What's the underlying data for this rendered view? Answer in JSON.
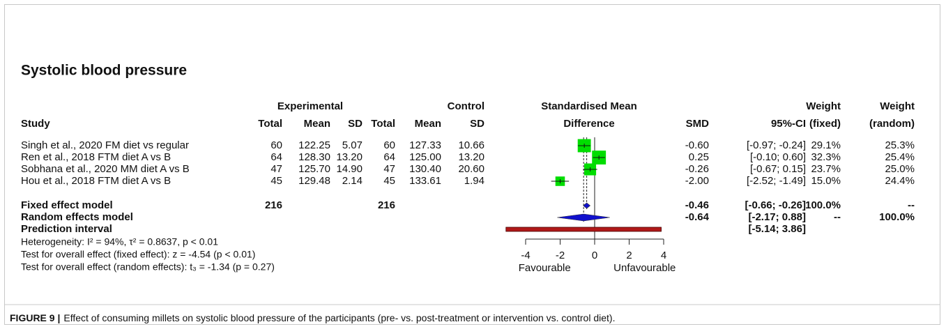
{
  "chart_data": {
    "type": "forest",
    "title": "Systolic blood pressure",
    "headers": {
      "experimental": "Experimental",
      "control": "Control",
      "study": "Study",
      "total": "Total",
      "mean": "Mean",
      "sd": "SD",
      "smd_title_1": "Standardised Mean",
      "smd_title_2": "Difference",
      "smd": "SMD",
      "ci": "95%-CI",
      "weight": "Weight",
      "fixed": "(fixed)",
      "random": "(random)"
    },
    "studies": [
      {
        "study": "Singh et al., 2020 FM diet vs regular",
        "exp_total": "60",
        "exp_mean": "122.25",
        "exp_sd": "5.07",
        "ctrl_total": "60",
        "ctrl_mean": "127.33",
        "ctrl_sd": "10.66",
        "smd": {
          "value": -0.6,
          "label": "-0.60"
        },
        "ci_low": -0.97,
        "ci_high": -0.24,
        "ci_label": "[-0.97; -0.24]",
        "weight_fixed": {
          "value": 29.1,
          "label": "29.1%"
        },
        "weight_random": "25.3%"
      },
      {
        "study": "Ren et al., 2018 FTM diet A vs B",
        "exp_total": "64",
        "exp_mean": "128.30",
        "exp_sd": "13.20",
        "ctrl_total": "64",
        "ctrl_mean": "125.00",
        "ctrl_sd": "13.20",
        "smd": {
          "value": 0.25,
          "label": "0.25"
        },
        "ci_low": -0.1,
        "ci_high": 0.6,
        "ci_label": "[-0.10; 0.60]",
        "weight_fixed": {
          "value": 32.3,
          "label": "32.3%"
        },
        "weight_random": "25.4%"
      },
      {
        "study": "Sobhana et al., 2020 MM diet A vs B",
        "exp_total": "47",
        "exp_mean": "125.70",
        "exp_sd": "14.90",
        "ctrl_total": "47",
        "ctrl_mean": "130.40",
        "ctrl_sd": "20.60",
        "smd": {
          "value": -0.26,
          "label": "-0.26"
        },
        "ci_low": -0.67,
        "ci_high": 0.15,
        "ci_label": "[-0.67; 0.15]",
        "weight_fixed": {
          "value": 23.7,
          "label": "23.7%"
        },
        "weight_random": "25.0%"
      },
      {
        "study": "Hou et al., 2018 FTM diet A vs B",
        "exp_total": "45",
        "exp_mean": "129.48",
        "exp_sd": "2.14",
        "ctrl_total": "45",
        "ctrl_mean": "133.61",
        "ctrl_sd": "1.94",
        "smd": {
          "value": -2,
          "label": "-2.00"
        },
        "ci_low": -2.52,
        "ci_high": -1.49,
        "ci_label": "[-2.52; -1.49]",
        "weight_fixed": {
          "value": 15,
          "label": "15.0%"
        },
        "weight_random": "24.4%"
      }
    ],
    "fixed": {
      "name": "Fixed effect model",
      "exp_total": "216",
      "ctrl_total": "216",
      "smd": {
        "value": -0.46,
        "label": "-0.46"
      },
      "ci_low": -0.66,
      "ci_high": -0.26,
      "ci_label": "[-0.66; -0.26]",
      "weight_fixed": "100.0%",
      "weight_random": "--"
    },
    "random": {
      "name": "Random effects model",
      "smd": {
        "value": -0.64,
        "label": "-0.64"
      },
      "ci_low": -2.17,
      "ci_high": 0.88,
      "ci_label": "[-2.17; 0.88]",
      "weight_fixed": "--",
      "weight_random": "100.0%"
    },
    "prediction": {
      "name": "Prediction interval",
      "ci_low": -5.14,
      "ci_high": 3.86,
      "ci_label": "[-5.14; 3.86]"
    },
    "heterogeneity": "Heterogeneity: I² = 94%, τ² = 0.8637, p < 0.01",
    "test_fixed": "Test for overall effect (fixed effect): z = -4.54 (p < 0.01)",
    "test_random": "Test for overall effect (random effects): t₃ = -1.34 (p = 0.27)",
    "xlim": [
      -4,
      4
    ],
    "xticks": [
      -4,
      -2,
      0,
      2,
      4
    ],
    "xlabel_left": "Favourable",
    "xlabel_right": "Unfavourable",
    "square_color": "#00dd00",
    "diamond_color": "#1010cc",
    "prediction_color": "#b01818",
    "caption_label": "FIGURE 9 |",
    "caption": "Effect of consuming millets on systolic blood pressure of the participants (pre- vs. post-treatment or intervention vs. control diet)."
  }
}
